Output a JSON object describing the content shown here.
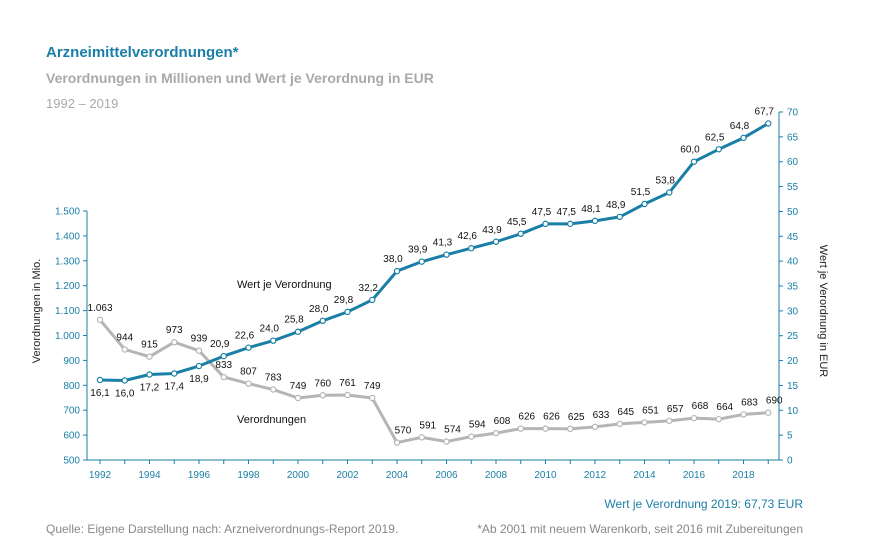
{
  "header": {
    "title": "Arzneimittelverordnungen*",
    "subtitle": "Verordnungen in Millionen und Wert je Verordnung in EUR",
    "period": "1992 – 2019"
  },
  "footer": {
    "value_note": "Wert je Verordnung 2019: 67,73 EUR",
    "source": "Quelle: Eigene Darstellung nach: Arzneiverordnungs-Report 2019.",
    "footnote": "*Ab 2001 mit neuem Warenkorb, seit 2016 mit Zubereitungen"
  },
  "chart_data": {
    "type": "line",
    "title": "Arzneimittelverordnungen*",
    "subtitle": "Verordnungen in Millionen und Wert je Verordnung in EUR",
    "x": [
      1992,
      1993,
      1994,
      1995,
      1996,
      1997,
      1998,
      1999,
      2000,
      2001,
      2002,
      2003,
      2004,
      2005,
      2006,
      2007,
      2008,
      2009,
      2010,
      2011,
      2012,
      2013,
      2014,
      2015,
      2016,
      2017,
      2018,
      2019
    ],
    "x_tick_labels": [
      "1992",
      "1994",
      "1996",
      "1998",
      "2000",
      "2002",
      "2004",
      "2006",
      "2008",
      "2010",
      "2012",
      "2014",
      "2016",
      "2018"
    ],
    "y_left": {
      "label": "Verordnungen in Mio.",
      "range": [
        500,
        1500
      ],
      "ticks": [
        "500",
        "600",
        "700",
        "800",
        "900",
        "1.000",
        "1.100",
        "1.200",
        "1.300",
        "1.400",
        "1.500"
      ]
    },
    "y_right": {
      "label": "Wert je Verordnung in EUR",
      "range": [
        0,
        70
      ],
      "ticks": [
        "0",
        "5",
        "10",
        "15",
        "20",
        "25",
        "30",
        "35",
        "40",
        "45",
        "50",
        "55",
        "60",
        "65",
        "70"
      ]
    },
    "series": [
      {
        "name": "Verordnungen",
        "axis": "left",
        "color": "#b5b5b5",
        "values": [
          1063,
          944,
          915,
          973,
          939,
          833,
          807,
          783,
          749,
          760,
          761,
          749,
          570,
          591,
          574,
          594,
          608,
          626,
          626,
          625,
          633,
          645,
          651,
          657,
          668,
          664,
          683,
          690
        ],
        "labels": [
          {
            "year": 1992,
            "text": "1.063"
          },
          {
            "year": 1993,
            "text": "944"
          },
          {
            "year": 1994,
            "text": "915"
          },
          {
            "year": 1995,
            "text": "973"
          },
          {
            "year": 1996,
            "text": "939"
          },
          {
            "year": 1997,
            "text": "833"
          },
          {
            "year": 1998,
            "text": "807"
          },
          {
            "year": 1999,
            "text": "783"
          },
          {
            "year": 2000,
            "text": "749"
          },
          {
            "year": 2001,
            "text": "760"
          },
          {
            "year": 2002,
            "text": "761"
          },
          {
            "year": 2003,
            "text": "749"
          },
          {
            "year": 2004,
            "text": "570"
          },
          {
            "year": 2005,
            "text": "591"
          },
          {
            "year": 2006,
            "text": "574"
          },
          {
            "year": 2007,
            "text": "594"
          },
          {
            "year": 2008,
            "text": "608"
          },
          {
            "year": 2009,
            "text": "626"
          },
          {
            "year": 2010,
            "text": "626"
          },
          {
            "year": 2011,
            "text": "625"
          },
          {
            "year": 2012,
            "text": "633"
          },
          {
            "year": 2013,
            "text": "645"
          },
          {
            "year": 2014,
            "text": "651"
          },
          {
            "year": 2015,
            "text": "657"
          },
          {
            "year": 2016,
            "text": "668"
          },
          {
            "year": 2017,
            "text": "664"
          },
          {
            "year": 2018,
            "text": "683"
          },
          {
            "year": 2019,
            "text": "690"
          }
        ]
      },
      {
        "name": "Wert je Verordnung",
        "axis": "right",
        "color": "#1a7fa6",
        "values": [
          16.1,
          16.0,
          17.2,
          17.4,
          18.9,
          20.9,
          22.6,
          24.0,
          25.8,
          28.0,
          29.8,
          32.2,
          38.0,
          39.9,
          41.3,
          42.6,
          43.9,
          45.5,
          47.5,
          47.5,
          48.1,
          48.9,
          51.5,
          53.8,
          60.0,
          62.5,
          64.8,
          67.7
        ],
        "labels": [
          {
            "year": 1992,
            "text": "16,1"
          },
          {
            "year": 1993,
            "text": "16,0"
          },
          {
            "year": 1994,
            "text": "17,2"
          },
          {
            "year": 1995,
            "text": "17,4"
          },
          {
            "year": 1996,
            "text": "18,9"
          },
          {
            "year": 1997,
            "text": "20,9"
          },
          {
            "year": 1998,
            "text": "22,6"
          },
          {
            "year": 1999,
            "text": "24,0"
          },
          {
            "year": 2000,
            "text": "25,8"
          },
          {
            "year": 2001,
            "text": "28,0"
          },
          {
            "year": 2002,
            "text": "29,8"
          },
          {
            "year": 2003,
            "text": "32,2"
          },
          {
            "year": 2004,
            "text": "38,0"
          },
          {
            "year": 2005,
            "text": "39,9"
          },
          {
            "year": 2006,
            "text": "41,3"
          },
          {
            "year": 2007,
            "text": "42,6"
          },
          {
            "year": 2008,
            "text": "43,9"
          },
          {
            "year": 2009,
            "text": "45,5"
          },
          {
            "year": 2011,
            "text": "47,5"
          },
          {
            "year": 2010,
            "text": "47,5"
          },
          {
            "year": 2012,
            "text": "48,1"
          },
          {
            "year": 2013,
            "text": "48,9"
          },
          {
            "year": 2014,
            "text": "51,5"
          },
          {
            "year": 2015,
            "text": "53,8"
          },
          {
            "year": 2016,
            "text": "60,0"
          },
          {
            "year": 2017,
            "text": "62,5"
          },
          {
            "year": 2018,
            "text": "64,8"
          },
          {
            "year": 2019,
            "text": "67,7"
          }
        ]
      }
    ],
    "series_annotations": [
      {
        "series": "Wert je Verordnung",
        "text": "Wert je Verordnung"
      },
      {
        "series": "Verordnungen",
        "text": "Verordnungen"
      }
    ]
  }
}
